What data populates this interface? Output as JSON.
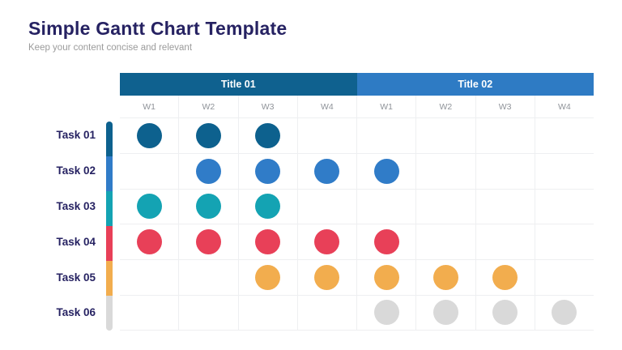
{
  "page": {
    "title": "Simple Gantt Chart Template",
    "subtitle": "Keep your content concise and relevant"
  },
  "colors": {
    "title_text": "#262262",
    "subtitle_text": "#9b9b9b",
    "task_label_text": "#262262",
    "week_label_text": "#8f9399",
    "grid_line": "#eeeff1",
    "header1_bg": "#0f618f",
    "header2_bg": "#2e7bc4"
  },
  "chart_data": {
    "type": "gantt",
    "title": "Simple Gantt Chart Template",
    "groups": [
      {
        "label": "Title 01",
        "color": "#0f618f",
        "weeks": [
          "W1",
          "W2",
          "W3",
          "W4"
        ]
      },
      {
        "label": "Title 02",
        "color": "#2e7bc4",
        "weeks": [
          "W1",
          "W2",
          "W3",
          "W4"
        ]
      }
    ],
    "columns": [
      "W1",
      "W2",
      "W3",
      "W4",
      "W1",
      "W2",
      "W3",
      "W4"
    ],
    "tasks": [
      {
        "label": "Task 01",
        "color": "#0d618e",
        "cells": [
          1,
          1,
          1,
          0,
          0,
          0,
          0,
          0
        ]
      },
      {
        "label": "Task 02",
        "color": "#307cc8",
        "cells": [
          0,
          1,
          1,
          1,
          1,
          0,
          0,
          0
        ]
      },
      {
        "label": "Task 03",
        "color": "#14a3b3",
        "cells": [
          1,
          1,
          1,
          0,
          0,
          0,
          0,
          0
        ]
      },
      {
        "label": "Task 04",
        "color": "#e84058",
        "cells": [
          1,
          1,
          1,
          1,
          1,
          0,
          0,
          0
        ]
      },
      {
        "label": "Task 05",
        "color": "#f2ad4e",
        "cells": [
          0,
          0,
          1,
          1,
          1,
          1,
          1,
          0
        ]
      },
      {
        "label": "Task 06",
        "color": "#d9d9d9",
        "cells": [
          0,
          0,
          0,
          0,
          1,
          1,
          1,
          1
        ]
      }
    ],
    "layout": {
      "grid": true,
      "legend": false,
      "dot_marker": "circle"
    }
  }
}
